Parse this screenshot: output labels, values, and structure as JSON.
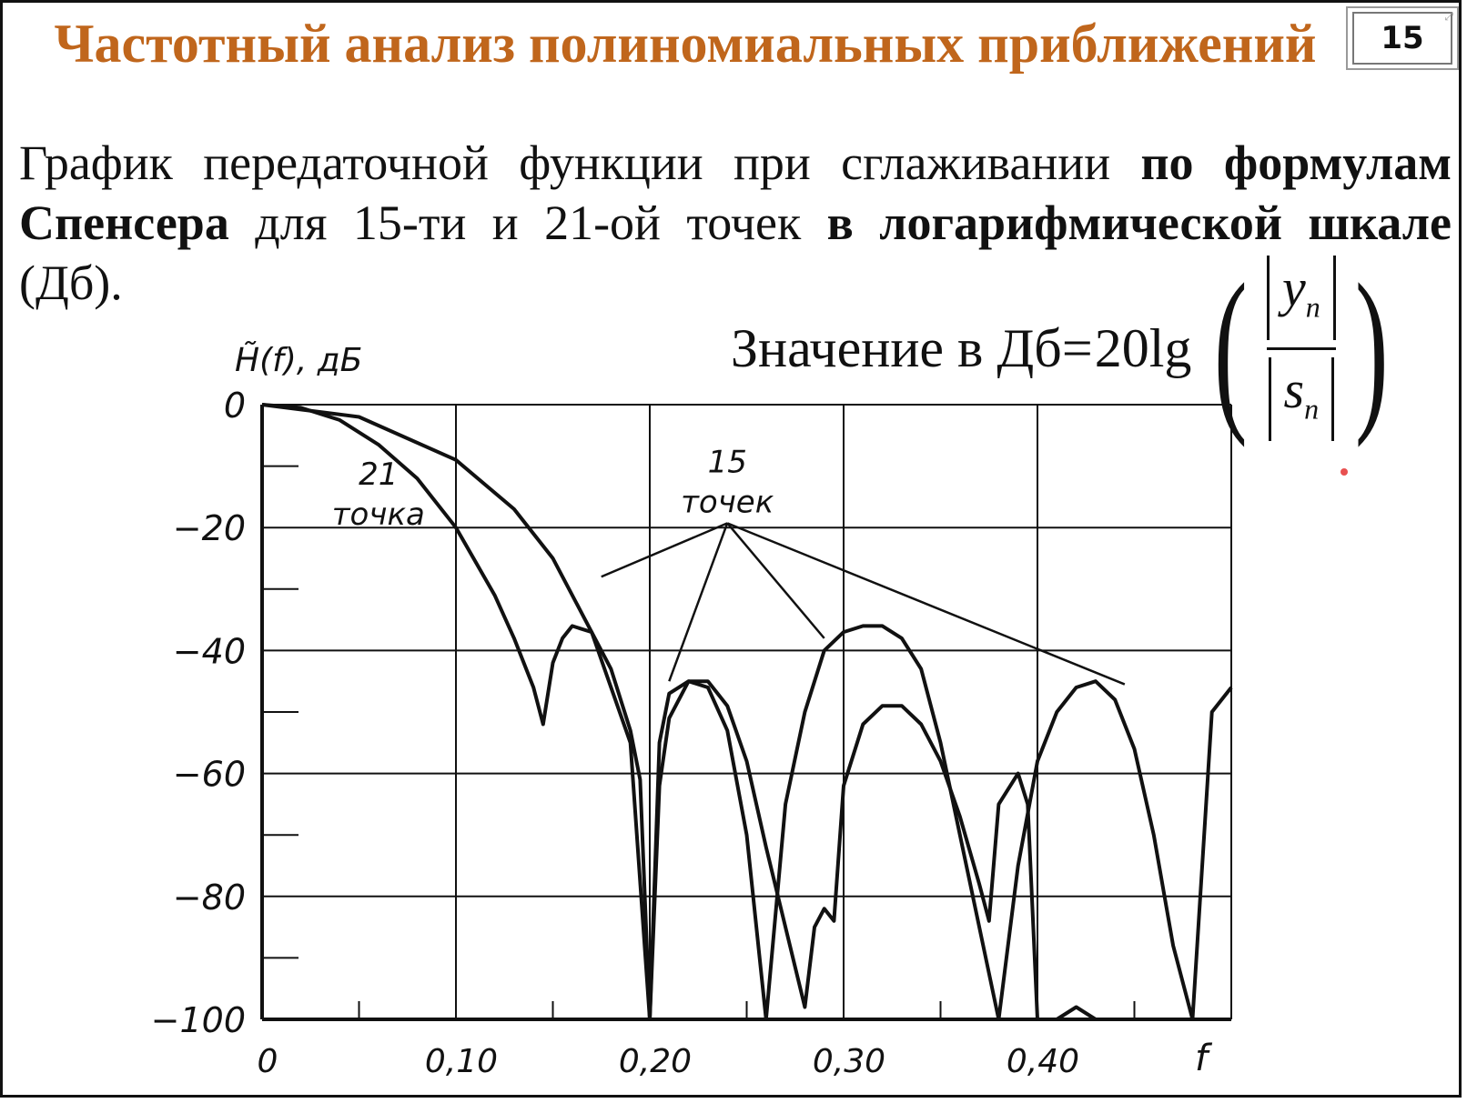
{
  "slide": {
    "title": "Частотный анализ полиномиальных приближений",
    "page_number": "15",
    "expand_icon": "expand-icon",
    "body": {
      "part1": "График передаточной функции при сглаживании ",
      "bold1": "по формулам Спенсера",
      "part2": " для 15-ти и 21-ой точек ",
      "bold2": "в логарифмической шкале",
      "part3": " (Дб)."
    },
    "formula": {
      "label": "Значение в Дб",
      "eq": "=",
      "fn": "20lg",
      "numerator_var": "y",
      "denominator_var": "s",
      "subscript": "n"
    },
    "accent_color": "#c0661c"
  },
  "chart_data": {
    "type": "line",
    "title": "",
    "ylabel": "H̃(f), дБ",
    "xlabel": "f",
    "xlim": [
      0,
      0.5
    ],
    "ylim": [
      -100,
      0
    ],
    "grid": true,
    "x_ticks": [
      {
        "value": 0,
        "label": "0"
      },
      {
        "value": 0.1,
        "label": "0,10"
      },
      {
        "value": 0.2,
        "label": "0,20"
      },
      {
        "value": 0.3,
        "label": "0,30"
      },
      {
        "value": 0.4,
        "label": "0,40"
      }
    ],
    "y_ticks": [
      {
        "value": 0,
        "label": "0"
      },
      {
        "value": -20,
        "label": "−20"
      },
      {
        "value": -40,
        "label": "−40"
      },
      {
        "value": -60,
        "label": "−60"
      },
      {
        "value": -80,
        "label": "−80"
      },
      {
        "value": -100,
        "label": "−100"
      }
    ],
    "annotations": [
      {
        "text_lines": [
          "21",
          "точка"
        ],
        "x": 0.06,
        "y": -13
      },
      {
        "text_lines": [
          "15",
          "точек"
        ],
        "x": 0.24,
        "y": -11
      }
    ],
    "series": [
      {
        "name": "21 точка",
        "x": [
          0,
          0.02,
          0.04,
          0.06,
          0.08,
          0.1,
          0.12,
          0.13,
          0.14,
          0.145,
          0.15,
          0.155,
          0.16,
          0.17,
          0.18,
          0.19,
          0.195,
          0.2,
          0.205,
          0.21,
          0.22,
          0.23,
          0.24,
          0.25,
          0.26,
          0.27,
          0.28,
          0.285,
          0.29,
          0.295,
          0.3,
          0.31,
          0.32,
          0.33,
          0.34,
          0.35,
          0.36,
          0.37,
          0.375,
          0.38,
          0.39,
          0.395,
          0.4,
          0.41,
          0.42,
          0.43
        ],
        "y": [
          0,
          -0.5,
          -2.5,
          -6.5,
          -12,
          -20,
          -31,
          -38,
          -46,
          -52,
          -42,
          -38,
          -36,
          -37,
          -43,
          -53,
          -61,
          -100,
          -62,
          -51,
          -45,
          -45,
          -49,
          -58,
          -72,
          -85,
          -98,
          -85,
          -82,
          -84,
          -62,
          -52,
          -49,
          -49,
          -52,
          -58,
          -67,
          -78,
          -84,
          -65,
          -60,
          -65,
          -100,
          -100,
          -98,
          -100
        ]
      },
      {
        "name": "15 точек",
        "x": [
          0,
          0.05,
          0.1,
          0.13,
          0.15,
          0.17,
          0.19,
          0.2,
          0.205,
          0.21,
          0.22,
          0.23,
          0.24,
          0.25,
          0.26,
          0.27,
          0.28,
          0.29,
          0.3,
          0.31,
          0.32,
          0.33,
          0.34,
          0.35,
          0.36,
          0.37,
          0.38,
          0.39,
          0.4,
          0.41,
          0.42,
          0.43,
          0.44,
          0.45,
          0.46,
          0.47,
          0.48,
          0.49,
          0.5
        ],
        "y": [
          0,
          -2,
          -9,
          -17,
          -25,
          -37,
          -55,
          -100,
          -55,
          -47,
          -45,
          -46,
          -53,
          -70,
          -100,
          -65,
          -50,
          -40,
          -37,
          -36,
          -36,
          -38,
          -43,
          -55,
          -70,
          -85,
          -100,
          -75,
          -58,
          -50,
          -46,
          -45,
          -48,
          -56,
          -70,
          -88,
          -100,
          -50,
          -46
        ]
      }
    ]
  }
}
